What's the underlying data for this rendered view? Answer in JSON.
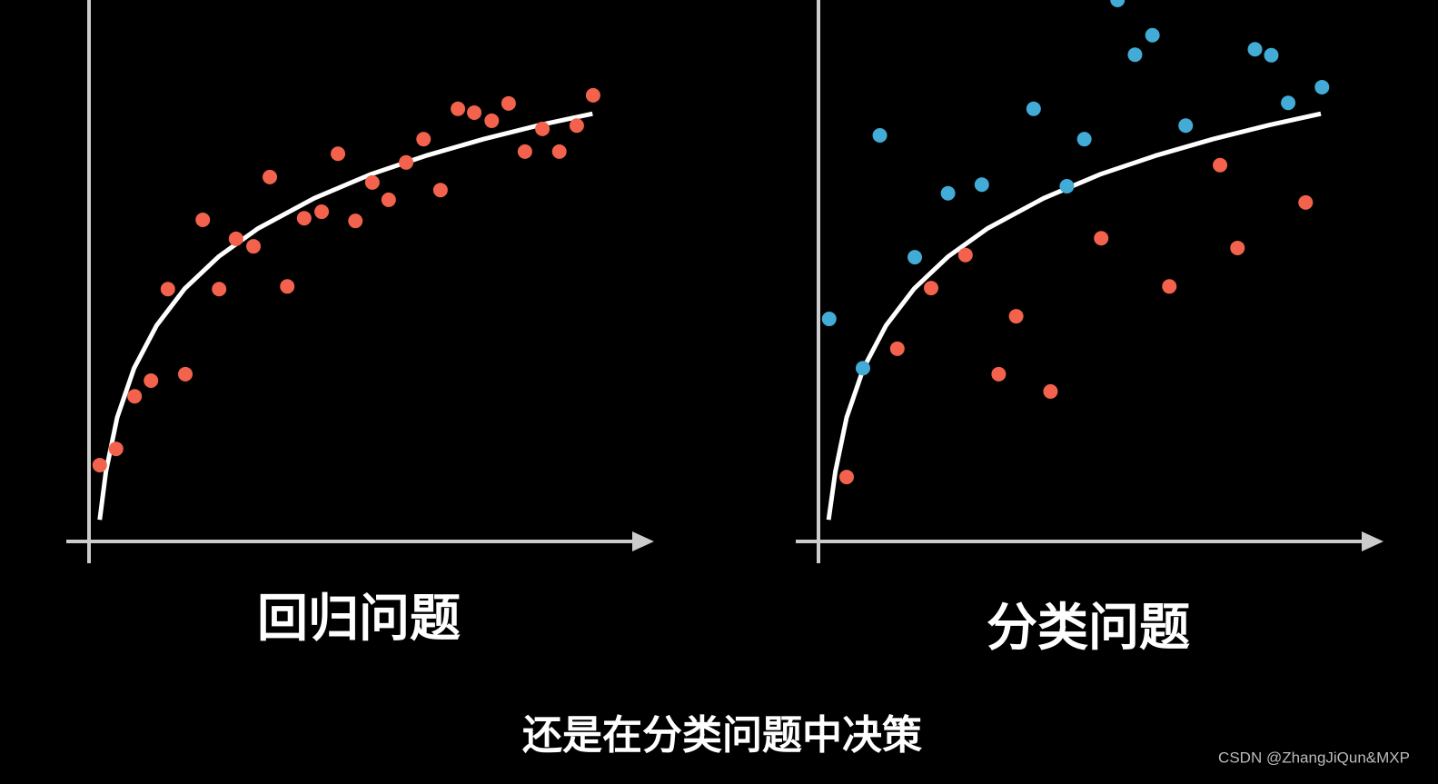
{
  "chart_data": [
    {
      "type": "scatter",
      "title": "回归问题",
      "xlim": [
        0,
        100
      ],
      "ylim": [
        0,
        100
      ],
      "series": [
        {
          "color": "#f2624c",
          "x": [
            1.9,
            4.8,
            8.1,
            11.0,
            14.0,
            17.1,
            20.2,
            23.1,
            26.1,
            29.2,
            32.1,
            35.2,
            38.2,
            41.3,
            44.2,
            47.3,
            50.3,
            53.2,
            56.3,
            59.4,
            62.4,
            65.5,
            68.4,
            71.5,
            74.5,
            77.4,
            80.5,
            83.5,
            86.6,
            89.5
          ],
          "values": [
            14.1,
            17.1,
            26.8,
            29.7,
            46.6,
            30.9,
            59.4,
            46.6,
            55.9,
            54.5,
            67.3,
            47.1,
            59.7,
            60.9,
            71.6,
            59.2,
            66.3,
            63.1,
            70.0,
            74.3,
            64.9,
            79.9,
            79.2,
            77.7,
            80.9,
            72.0,
            76.2,
            72.0,
            76.8,
            82.4
          ]
        }
      ],
      "fit": {
        "color": "#ffffff",
        "x": [
          1.9,
          3,
          5,
          8,
          12,
          17,
          23,
          30,
          40,
          50,
          60,
          70,
          80,
          89.4
        ],
        "values": [
          4.0,
          12.9,
          22.9,
          32.0,
          39.9,
          46.7,
          52.6,
          57.8,
          63.4,
          67.8,
          71.3,
          74.3,
          76.9,
          79.0
        ]
      }
    },
    {
      "type": "scatter",
      "title": "分类问题",
      "xlim": [
        0,
        100
      ],
      "ylim": [
        0,
        100
      ],
      "series": [
        {
          "color": "#42abd6",
          "x": [
            1.9,
            7.9,
            10.9,
            17.1,
            23.0,
            29.0,
            38.2,
            44.1,
            47.2,
            53.1,
            56.2,
            59.3,
            65.2,
            77.5,
            80.4,
            83.4,
            89.4
          ],
          "values": [
            41.1,
            32.0,
            75.0,
            52.5,
            64.3,
            65.9,
            79.9,
            65.6,
            74.3,
            100.0,
            89.9,
            93.5,
            76.8,
            90.9,
            89.8,
            81.0,
            83.9
          ]
        },
        {
          "color": "#f2624c",
          "x": [
            5.0,
            14.0,
            20.0,
            26.1,
            32.0,
            35.1,
            41.2,
            50.2,
            62.3,
            71.3,
            74.4,
            86.5
          ],
          "values": [
            11.9,
            35.6,
            46.8,
            52.9,
            30.9,
            41.6,
            27.7,
            56.0,
            47.1,
            69.5,
            54.2,
            62.6
          ]
        }
      ],
      "fit": {
        "color": "#ffffff",
        "x": [
          1.8,
          3,
          5,
          8,
          12,
          17,
          23,
          30,
          40,
          50,
          60,
          70,
          80,
          89.2
        ],
        "values": [
          4.0,
          12.9,
          22.9,
          32.0,
          39.9,
          46.7,
          52.6,
          57.8,
          63.4,
          67.8,
          71.3,
          74.3,
          76.9,
          79.0
        ]
      }
    }
  ],
  "caption": "还是在分类问题中决策",
  "watermark": "CSDN @ZhangJiQun&MXP"
}
